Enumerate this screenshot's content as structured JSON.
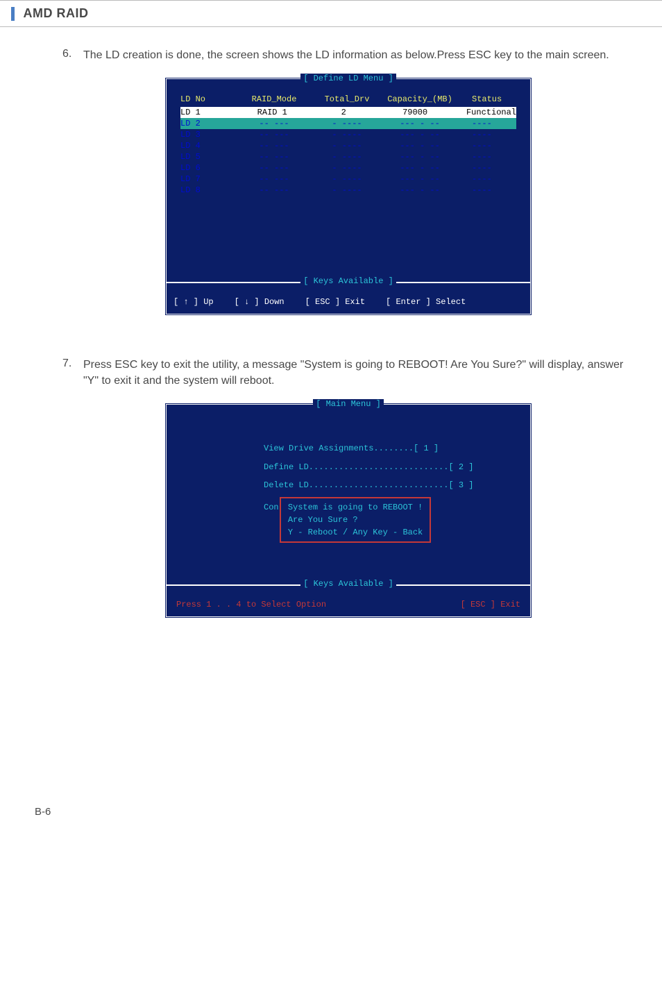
{
  "page": {
    "title": "AMD RAID",
    "page_number": "B-6"
  },
  "step6": {
    "num": "6.",
    "text": "The LD creation is done, the screen shows the LD information as below.Press ESC key to the main screen."
  },
  "bios1": {
    "title": "[ Define LD Menu ]",
    "headers": {
      "ldno": "LD No",
      "raid": "RAID_Mode",
      "drv": "Total_Drv",
      "cap": "Capacity_(MB)",
      "stat": "Status"
    },
    "rows": [
      {
        "ldno": "LD   1",
        "raid": "RAID 1",
        "drv": "2",
        "cap": "79000",
        "stat": "Functional",
        "cls": "white-row"
      },
      {
        "ldno": "LD   2",
        "raid": "-- ---",
        "drv": "- ----",
        "cap": "--- - --",
        "stat": "----",
        "cls": "teal-highlight"
      },
      {
        "ldno": "LD   3",
        "raid": "-- ---",
        "drv": "- ----",
        "cap": "--- - --",
        "stat": "----",
        "cls": "dashed"
      },
      {
        "ldno": "LD   4",
        "raid": "-- ---",
        "drv": "- ----",
        "cap": "--- - --",
        "stat": "----",
        "cls": "dashed"
      },
      {
        "ldno": "LD   5",
        "raid": "-- ---",
        "drv": "- ----",
        "cap": "--- - --",
        "stat": "----",
        "cls": "dashed"
      },
      {
        "ldno": "LD   6",
        "raid": "-- ---",
        "drv": "- ----",
        "cap": "--- - --",
        "stat": "----",
        "cls": "dashed"
      },
      {
        "ldno": "LD   7",
        "raid": "-- ---",
        "drv": "- ----",
        "cap": "--- - --",
        "stat": "----",
        "cls": "dashed"
      },
      {
        "ldno": "LD   8",
        "raid": "-- ---",
        "drv": "- ----",
        "cap": "--- - --",
        "stat": "----",
        "cls": "dashed"
      }
    ],
    "keys_title": "[ Keys Available ]",
    "keys": {
      "up": "[ ↑ ] Up",
      "down": "[ ↓ ] Down",
      "esc": "[ ESC ] Exit",
      "enter": "[ Enter ] Select"
    }
  },
  "step7": {
    "num": "7.",
    "text": "Press ESC key to exit the utility, a message \"System is going to REBOOT! Are You Sure?\" will display, answer \"Y\" to exit it and the system will reboot."
  },
  "bios2": {
    "title": "[ Main Menu ]",
    "items": {
      "view": "View Drive Assignments........[  1  ]",
      "define": "Define LD............................[  2  ]",
      "delete": "Delete LD............................[  3  ]"
    },
    "con": "Con",
    "reboot": {
      "l1": "System is going to REBOOT !",
      "l2": "Are You Sure ?",
      "l3": "Y - Reboot / Any Key - Back"
    },
    "keys_title": "[ Keys Available ]",
    "footer": {
      "left": "Press 1 . . 4 to Select Option",
      "right": "[ ESC ]   Exit"
    }
  }
}
